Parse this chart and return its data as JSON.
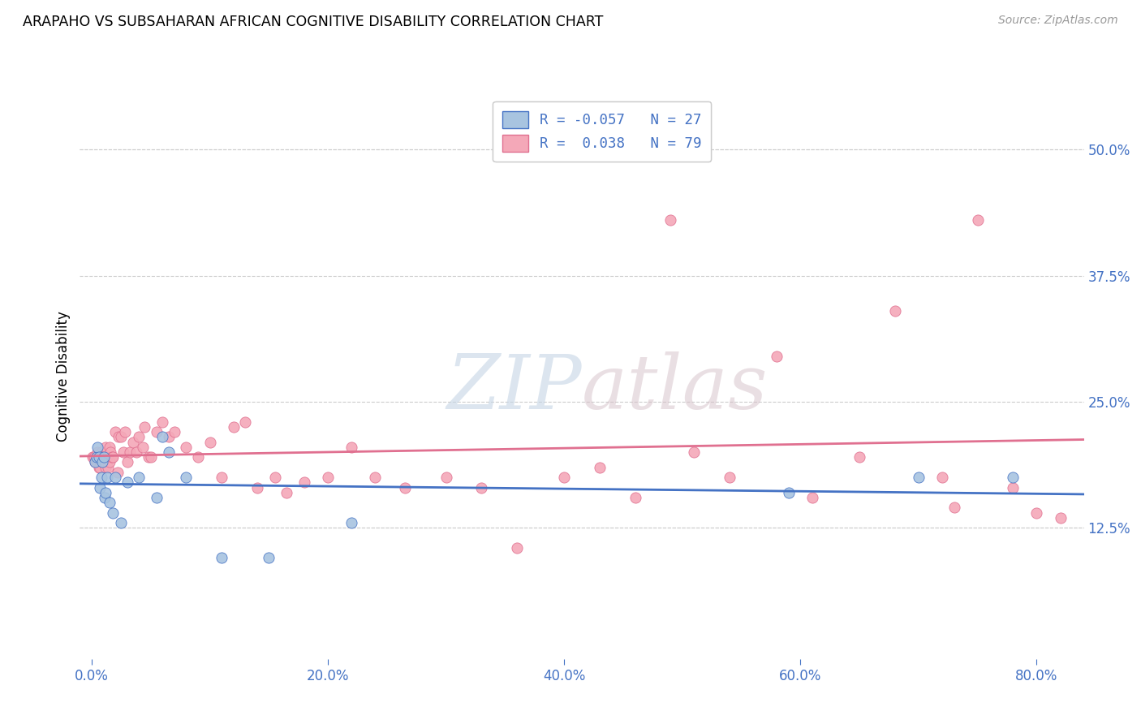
{
  "title": "ARAPAHO VS SUBSAHARAN AFRICAN COGNITIVE DISABILITY CORRELATION CHART",
  "source": "Source: ZipAtlas.com",
  "xlabel_ticks": [
    "0.0%",
    "20.0%",
    "40.0%",
    "60.0%",
    "80.0%"
  ],
  "xlabel_vals": [
    0.0,
    0.2,
    0.4,
    0.6,
    0.8
  ],
  "ylabel": "Cognitive Disability",
  "ylabel_ticks_right": [
    "12.5%",
    "25.0%",
    "37.5%",
    "50.0%"
  ],
  "ylabel_vals_right": [
    0.125,
    0.25,
    0.375,
    0.5
  ],
  "xlim": [
    -0.01,
    0.84
  ],
  "ylim": [
    -0.005,
    0.555
  ],
  "arapaho_color": "#a8c4e0",
  "subsaharan_color": "#f4a8b8",
  "arapaho_line_color": "#4472c4",
  "subsaharan_line_color": "#e07090",
  "watermark_zip": "ZIP",
  "watermark_atlas": "atlas",
  "arapaho_x": [
    0.003,
    0.004,
    0.005,
    0.006,
    0.007,
    0.008,
    0.009,
    0.01,
    0.011,
    0.012,
    0.013,
    0.015,
    0.018,
    0.02,
    0.025,
    0.03,
    0.04,
    0.055,
    0.06,
    0.065,
    0.08,
    0.11,
    0.15,
    0.22,
    0.59,
    0.7,
    0.78
  ],
  "arapaho_y": [
    0.19,
    0.195,
    0.205,
    0.195,
    0.165,
    0.175,
    0.19,
    0.195,
    0.155,
    0.16,
    0.175,
    0.15,
    0.14,
    0.175,
    0.13,
    0.17,
    0.175,
    0.155,
    0.215,
    0.2,
    0.175,
    0.095,
    0.095,
    0.13,
    0.16,
    0.175,
    0.175
  ],
  "subsaharan_x": [
    0.001,
    0.002,
    0.003,
    0.004,
    0.005,
    0.005,
    0.006,
    0.006,
    0.007,
    0.007,
    0.008,
    0.008,
    0.009,
    0.009,
    0.01,
    0.01,
    0.011,
    0.012,
    0.012,
    0.013,
    0.013,
    0.014,
    0.015,
    0.015,
    0.016,
    0.017,
    0.018,
    0.02,
    0.022,
    0.023,
    0.025,
    0.027,
    0.028,
    0.03,
    0.032,
    0.035,
    0.038,
    0.04,
    0.043,
    0.045,
    0.048,
    0.05,
    0.055,
    0.06,
    0.065,
    0.07,
    0.08,
    0.09,
    0.1,
    0.11,
    0.12,
    0.13,
    0.14,
    0.155,
    0.165,
    0.18,
    0.2,
    0.22,
    0.24,
    0.265,
    0.3,
    0.33,
    0.36,
    0.4,
    0.43,
    0.46,
    0.49,
    0.51,
    0.54,
    0.58,
    0.61,
    0.65,
    0.68,
    0.72,
    0.73,
    0.75,
    0.78,
    0.8,
    0.82
  ],
  "subsaharan_y": [
    0.195,
    0.195,
    0.19,
    0.19,
    0.2,
    0.19,
    0.195,
    0.185,
    0.195,
    0.185,
    0.2,
    0.195,
    0.195,
    0.195,
    0.19,
    0.195,
    0.19,
    0.205,
    0.185,
    0.195,
    0.195,
    0.185,
    0.205,
    0.19,
    0.2,
    0.195,
    0.195,
    0.22,
    0.18,
    0.215,
    0.215,
    0.2,
    0.22,
    0.19,
    0.2,
    0.21,
    0.2,
    0.215,
    0.205,
    0.225,
    0.195,
    0.195,
    0.22,
    0.23,
    0.215,
    0.22,
    0.205,
    0.195,
    0.21,
    0.175,
    0.225,
    0.23,
    0.165,
    0.175,
    0.16,
    0.17,
    0.175,
    0.205,
    0.175,
    0.165,
    0.175,
    0.165,
    0.105,
    0.175,
    0.185,
    0.155,
    0.43,
    0.2,
    0.175,
    0.295,
    0.155,
    0.195,
    0.34,
    0.175,
    0.145,
    0.43,
    0.165,
    0.14,
    0.135
  ]
}
